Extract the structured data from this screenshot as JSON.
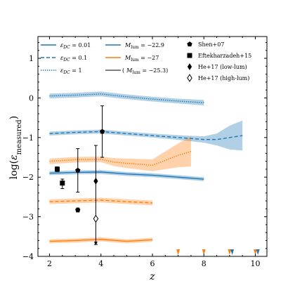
{
  "chart_data": {
    "type": "line",
    "xlabel": "z",
    "ylabel": "log(ε_measured)",
    "xlim": [
      1.55,
      10.45
    ],
    "ylim": [
      -4.0,
      1.55
    ],
    "xticks": [
      2,
      4,
      6,
      8,
      10
    ],
    "yticks": [
      -4,
      -3,
      -2,
      -1,
      0,
      1
    ],
    "colors": {
      "blue": "#1f77b4",
      "orange": "#ff7f0e",
      "black": "#000000",
      "gray": "#555555"
    },
    "legend": {
      "placement": "top",
      "line_style_entries": [
        {
          "label": "ε_DC = 0.01",
          "sub": "DC",
          "value": "0.01",
          "dash": "solid"
        },
        {
          "label": "ε_DC = 0.1",
          "sub": "DC",
          "value": "0.1",
          "dash": "dashed"
        },
        {
          "label": "ε_DC = 1",
          "sub": "DC",
          "value": "1",
          "dash": "dotted"
        }
      ],
      "color_entries": [
        {
          "label": "M_lum = −22.9",
          "value": "−22.9",
          "color": "blue",
          "paren": false
        },
        {
          "label": "M_lum = −27",
          "value": "−27",
          "color": "orange",
          "paren": false
        },
        {
          "label": "(  M_lum = −25.3)",
          "value": "−25.3",
          "color": "gray",
          "paren": true
        }
      ],
      "marker_entries": [
        {
          "label": "Shen+07",
          "marker": "pentagon"
        },
        {
          "label": "Eftekharzadeh+15",
          "marker": "square"
        },
        {
          "label": "He+17 (low-lum)",
          "marker": "diamond-filled"
        },
        {
          "label": "He+17 (high-lum)",
          "marker": "diamond-open"
        }
      ]
    },
    "series": [
      {
        "name": "ε_DC = 1, M_lum = −22.9",
        "color": "blue",
        "dash": "dotted",
        "x": [
          2,
          3,
          4,
          5,
          6,
          7,
          8
        ],
        "y": [
          0.05,
          0.07,
          0.1,
          0.03,
          -0.03,
          -0.08,
          -0.12
        ],
        "band": [
          0.06,
          0.06,
          0.06,
          0.06,
          0.06,
          0.06,
          0.07
        ]
      },
      {
        "name": "ε_DC = 0.1, M_lum = −22.9",
        "color": "blue",
        "dash": "dashed",
        "x": [
          2,
          3,
          4,
          5,
          6,
          7,
          8,
          8.5,
          9,
          9.5
        ],
        "y": [
          -0.9,
          -0.87,
          -0.85,
          -0.9,
          -0.95,
          -1.0,
          -1.05,
          -1.05,
          -1.0,
          -0.95
        ],
        "band": [
          0.05,
          0.05,
          0.05,
          0.05,
          0.05,
          0.06,
          0.08,
          0.15,
          0.3,
          0.38
        ]
      },
      {
        "name": "ε_DC = 0.01, M_lum = −22.9",
        "color": "blue",
        "dash": "solid",
        "x": [
          2,
          3,
          4,
          5,
          6,
          7,
          8
        ],
        "y": [
          -1.9,
          -1.88,
          -1.87,
          -1.92,
          -1.95,
          -2.0,
          -2.05
        ],
        "band": [
          0.05,
          0.05,
          0.05,
          0.05,
          0.05,
          0.05,
          0.05
        ]
      },
      {
        "name": "ε_DC = 1, M_lum = −27",
        "color": "orange",
        "dash": "dotted",
        "x": [
          2,
          3,
          4,
          4.5,
          5,
          6,
          7,
          7.5
        ],
        "y": [
          -1.6,
          -1.56,
          -1.55,
          -1.62,
          -1.65,
          -1.7,
          -1.45,
          -1.35
        ],
        "band": [
          0.07,
          0.07,
          0.07,
          0.1,
          0.12,
          0.15,
          0.3,
          0.38
        ]
      },
      {
        "name": "ε_DC = 0.1, M_lum = −27",
        "color": "orange",
        "dash": "dashed",
        "x": [
          2,
          3,
          4,
          5,
          6
        ],
        "y": [
          -2.62,
          -2.6,
          -2.58,
          -2.62,
          -2.65
        ],
        "band": [
          0.06,
          0.06,
          0.06,
          0.06,
          0.06
        ]
      },
      {
        "name": "ε_DC = 0.01, M_lum = −27",
        "color": "orange",
        "dash": "solid",
        "x": [
          2,
          3,
          4,
          5,
          6
        ],
        "y": [
          -3.62,
          -3.6,
          -3.57,
          -3.62,
          -3.58
        ],
        "band": [
          0.05,
          0.05,
          0.05,
          0.05,
          0.05
        ]
      }
    ],
    "points": [
      {
        "name": "Eftekharzadeh+15",
        "marker": "square",
        "x": 2.3,
        "y": -1.8,
        "yerr_low": 0.06,
        "yerr_high": 0.06
      },
      {
        "name": "Eftekharzadeh+15",
        "marker": "square",
        "x": 2.5,
        "y": -2.15,
        "yerr_low": 0.14,
        "yerr_high": 0.1
      },
      {
        "name": "Shen+07",
        "marker": "pentagon",
        "x": 3.1,
        "y": -2.83,
        "yerr_low": 0.05,
        "yerr_high": 0.05
      },
      {
        "name": "Shen+07",
        "marker": "pentagon",
        "x": 3.1,
        "y": -1.83,
        "yerr_low": 0.55,
        "yerr_high": 0.55
      },
      {
        "name": "He+17 (low-lum)",
        "marker": "diamond-filled",
        "x": 3.8,
        "y": -2.1,
        "yerr_low": 1.6,
        "yerr_high": 0.9
      },
      {
        "name": "He+17 (high-lum)",
        "marker": "diamond-open",
        "x": 3.8,
        "y": -3.05,
        "yerr_low": 0,
        "yerr_high": 0
      },
      {
        "name": "He+17 (low-lum)",
        "marker": "pentagon",
        "x": 4.05,
        "y": -0.85,
        "yerr_low": 0.65,
        "yerr_high": 0.65
      }
    ],
    "bottom_arrows": [
      {
        "x": 7.0,
        "color": "orange"
      },
      {
        "x": 8.0,
        "color": "orange"
      },
      {
        "x": 9.0,
        "color": "orange"
      },
      {
        "x": 9.1,
        "color": "blue"
      },
      {
        "x": 10.0,
        "color": "orange"
      },
      {
        "x": 10.1,
        "color": "blue"
      }
    ]
  }
}
